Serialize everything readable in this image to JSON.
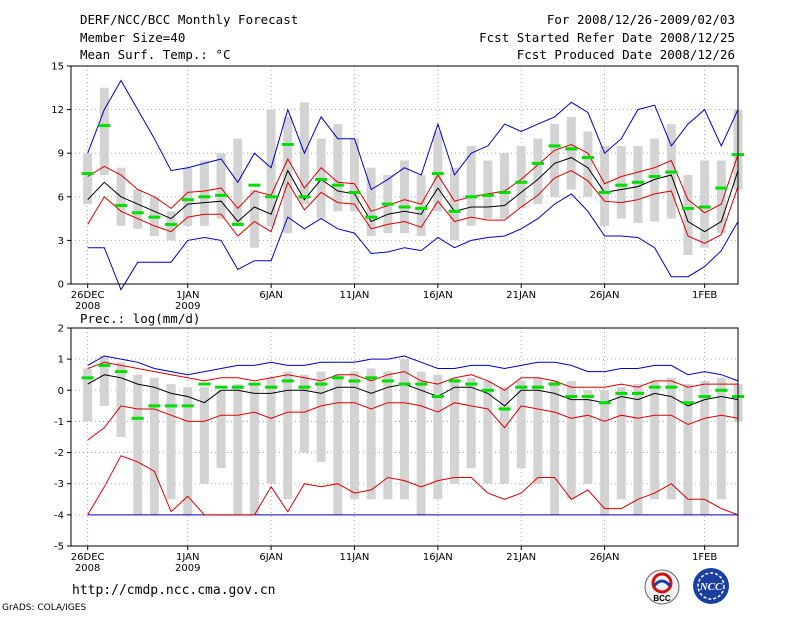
{
  "header": {
    "title": "DERF/NCC/BCC Monthly Forecast",
    "members": "Member Size=40",
    "variable": "Mean Surf. Temp.: °C",
    "period": "For 2008/12/26-2009/02/03",
    "refer": "Fcst Started Refer Date 2008/12/25",
    "produced": "Fcst Produced Date 2008/12/26"
  },
  "footer": {
    "url": "http://cmdp.ncc.cma.gov.cn",
    "credit": "GrADS: COLA/IGES",
    "logo_bcc": "BCC",
    "logo_ncc": "NCC"
  },
  "colors": {
    "bar": "#d3d3d3",
    "median": "#00dd00",
    "mean": "#000000",
    "sd": "#dd0000",
    "range": "#0000cc",
    "grid": "#999999"
  },
  "chart_data": [
    {
      "type": "box-ensemble",
      "title": "Mean Surf. Temp.: °C",
      "ylim": [
        0,
        15
      ],
      "yticks": [
        0,
        3,
        6,
        9,
        12,
        15
      ],
      "xlim": [
        0,
        40
      ],
      "xticks": [
        {
          "x": 1,
          "label": "26DEC",
          "sub": "2008"
        },
        {
          "x": 7,
          "label": "1JAN",
          "sub": "2009"
        },
        {
          "x": 12,
          "label": "6JAN",
          "sub": ""
        },
        {
          "x": 17,
          "label": "11JAN",
          "sub": ""
        },
        {
          "x": 22,
          "label": "16JAN",
          "sub": ""
        },
        {
          "x": 27,
          "label": "21JAN",
          "sub": ""
        },
        {
          "x": 32,
          "label": "26JAN",
          "sub": ""
        },
        {
          "x": 38,
          "label": "1FEB",
          "sub": ""
        }
      ],
      "x": [
        1,
        2,
        3,
        4,
        5,
        6,
        7,
        8,
        9,
        10,
        11,
        12,
        13,
        14,
        15,
        16,
        17,
        18,
        19,
        20,
        21,
        22,
        23,
        24,
        25,
        26,
        27,
        28,
        29,
        30,
        31,
        32,
        33,
        34,
        35,
        36,
        37,
        38,
        39,
        40
      ],
      "box_low": [
        5.5,
        7.5,
        4.0,
        3.8,
        3.3,
        3.0,
        4.0,
        4.0,
        4.5,
        4.0,
        2.5,
        4.0,
        3.5,
        5.5,
        4.5,
        5.0,
        5.0,
        3.3,
        3.5,
        3.5,
        3.3,
        5.0,
        3.0,
        4.0,
        4.5,
        4.5,
        5.2,
        5.5,
        6.0,
        6.5,
        6.0,
        4.0,
        4.5,
        4.2,
        4.3,
        4.5,
        2.0,
        2.5,
        3.5,
        6.5
      ],
      "box_high": [
        9.0,
        13.5,
        8.0,
        6.5,
        6.0,
        5.0,
        8.0,
        8.5,
        9.0,
        10.0,
        6.5,
        12.0,
        11.5,
        12.5,
        10.0,
        11.0,
        10.0,
        8.0,
        7.5,
        8.5,
        7.5,
        10.5,
        8.0,
        9.5,
        8.5,
        9.0,
        9.5,
        10.0,
        11.0,
        11.5,
        10.5,
        9.5,
        9.5,
        9.5,
        10.0,
        11.0,
        7.5,
        8.5,
        8.5,
        12.0
      ],
      "median": [
        7.6,
        10.9,
        5.4,
        4.9,
        4.6,
        4.1,
        5.8,
        6.0,
        6.1,
        4.1,
        6.8,
        6.0,
        9.6,
        6.0,
        7.2,
        6.8,
        6.3,
        4.6,
        5.5,
        5.3,
        5.2,
        7.6,
        5.0,
        6.0,
        6.1,
        6.3,
        7.0,
        8.3,
        9.5,
        9.3,
        8.7,
        6.3,
        6.8,
        7.0,
        7.4,
        7.7,
        5.2,
        5.3,
        6.6,
        8.9
      ],
      "mean": [
        5.8,
        7.0,
        6.0,
        5.5,
        5.0,
        4.5,
        5.5,
        5.6,
        5.7,
        4.3,
        5.3,
        4.8,
        7.8,
        5.8,
        7.2,
        6.4,
        6.2,
        4.3,
        4.8,
        5.0,
        4.8,
        6.6,
        5.0,
        5.3,
        5.3,
        5.4,
        6.3,
        7.2,
        8.3,
        8.7,
        8.0,
        6.3,
        6.5,
        6.7,
        7.2,
        7.5,
        4.3,
        3.6,
        4.3,
        7.8
      ],
      "sd_high": [
        7.4,
        8.1,
        7.5,
        6.5,
        6.0,
        5.2,
        6.3,
        6.4,
        6.6,
        5.2,
        6.4,
        6.1,
        8.6,
        6.6,
        8.0,
        7.0,
        6.9,
        5.0,
        5.4,
        5.8,
        5.5,
        7.5,
        5.7,
        6.0,
        6.2,
        6.4,
        7.2,
        8.2,
        9.2,
        9.6,
        9.0,
        6.9,
        7.4,
        7.7,
        8.0,
        8.5,
        5.8,
        4.9,
        5.5,
        8.9
      ],
      "sd_low": [
        4.1,
        6.0,
        5.0,
        4.5,
        4.0,
        3.6,
        4.6,
        4.8,
        4.8,
        3.3,
        4.3,
        3.6,
        7.0,
        5.1,
        6.3,
        5.6,
        5.5,
        3.8,
        4.1,
        4.3,
        3.9,
        5.7,
        4.3,
        4.6,
        4.4,
        4.4,
        5.3,
        6.1,
        7.3,
        7.8,
        7.1,
        5.7,
        5.6,
        5.8,
        6.2,
        6.4,
        3.3,
        2.8,
        3.4,
        6.7
      ],
      "max": [
        9.0,
        12.0,
        14.0,
        12.0,
        10.0,
        7.8,
        8.0,
        8.3,
        8.6,
        7.0,
        9.0,
        8.0,
        12.0,
        9.0,
        11.5,
        10.0,
        10.0,
        6.5,
        7.2,
        8.0,
        7.5,
        11.0,
        7.5,
        9.0,
        9.5,
        11.0,
        10.5,
        11.0,
        11.5,
        12.5,
        11.8,
        9.0,
        10.0,
        12.0,
        12.3,
        9.5,
        11.0,
        12.0,
        9.5,
        12.0
      ],
      "min": [
        2.5,
        2.5,
        -0.4,
        1.5,
        1.5,
        1.5,
        3.0,
        3.2,
        3.0,
        1.0,
        1.6,
        1.6,
        4.6,
        3.8,
        4.5,
        3.8,
        3.5,
        2.1,
        2.2,
        2.5,
        2.3,
        3.2,
        2.5,
        3.0,
        3.2,
        3.3,
        3.8,
        4.5,
        5.5,
        6.2,
        5.0,
        3.3,
        3.3,
        3.2,
        2.5,
        0.5,
        0.5,
        1.2,
        2.3,
        4.3
      ]
    },
    {
      "type": "box-ensemble",
      "title": "Prec.: log(mm/d)",
      "ylim": [
        -5,
        2
      ],
      "yticks": [
        -5,
        -4,
        -3,
        -2,
        -1,
        0,
        1,
        2
      ],
      "xlim": [
        0,
        40
      ],
      "xticks": [
        {
          "x": 1,
          "label": "26DEC",
          "sub": "2008"
        },
        {
          "x": 7,
          "label": "1JAN",
          "sub": "2009"
        },
        {
          "x": 12,
          "label": "6JAN",
          "sub": ""
        },
        {
          "x": 17,
          "label": "11JAN",
          "sub": ""
        },
        {
          "x": 22,
          "label": "16JAN",
          "sub": ""
        },
        {
          "x": 27,
          "label": "21JAN",
          "sub": ""
        },
        {
          "x": 32,
          "label": "26JAN",
          "sub": ""
        },
        {
          "x": 38,
          "label": "1FEB",
          "sub": ""
        }
      ],
      "x": [
        1,
        2,
        3,
        4,
        5,
        6,
        7,
        8,
        9,
        10,
        11,
        12,
        13,
        14,
        15,
        16,
        17,
        18,
        19,
        20,
        21,
        22,
        23,
        24,
        25,
        26,
        27,
        28,
        29,
        30,
        31,
        32,
        33,
        34,
        35,
        36,
        37,
        38,
        39,
        40
      ],
      "box_low": [
        -1.0,
        -0.5,
        -1.5,
        -4.0,
        -4.0,
        -3.5,
        -4.0,
        -3.0,
        -2.5,
        -4.0,
        -4.0,
        -3.0,
        -3.5,
        -2.0,
        -2.3,
        -4.0,
        -3.5,
        -3.5,
        -3.5,
        -3.5,
        -4.0,
        -3.5,
        -3.0,
        -2.5,
        -3.0,
        -3.0,
        -2.5,
        -3.0,
        -4.0,
        -3.5,
        -3.0,
        -4.0,
        -3.5,
        -4.0,
        -3.5,
        -3.5,
        -4.0,
        -4.0,
        -3.5,
        -1.0
      ],
      "box_high": [
        0.7,
        1.1,
        0.9,
        0.5,
        0.4,
        0.2,
        0.1,
        0.1,
        0.0,
        0.2,
        0.2,
        0.4,
        0.6,
        0.5,
        0.6,
        0.5,
        0.6,
        0.7,
        0.6,
        1.0,
        0.6,
        0.5,
        0.4,
        0.4,
        0.3,
        0.1,
        0.3,
        0.4,
        0.3,
        0.3,
        0.0,
        0.0,
        0.1,
        0.2,
        0.3,
        0.4,
        0.2,
        0.3,
        0.4,
        0.2
      ],
      "median": [
        0.4,
        0.8,
        0.6,
        -0.9,
        -0.5,
        -0.5,
        -0.5,
        0.2,
        0.1,
        0.1,
        0.2,
        0.1,
        0.3,
        0.1,
        0.2,
        0.4,
        0.3,
        0.4,
        0.3,
        0.2,
        0.2,
        -0.2,
        0.3,
        0.2,
        0.0,
        -0.6,
        0.1,
        0.1,
        0.2,
        -0.2,
        -0.2,
        -0.4,
        -0.1,
        -0.1,
        0.1,
        0.1,
        -0.4,
        -0.2,
        0.0,
        -0.2
      ],
      "mean": [
        0.2,
        0.5,
        0.4,
        0.2,
        0.1,
        -0.1,
        -0.2,
        -0.4,
        0.0,
        0.0,
        -0.1,
        -0.1,
        0.0,
        0.0,
        -0.1,
        0.1,
        0.1,
        -0.1,
        0.1,
        0.2,
        0.0,
        -0.2,
        0.1,
        0.1,
        -0.1,
        -0.5,
        0.0,
        0.0,
        -0.1,
        -0.3,
        -0.3,
        -0.4,
        -0.2,
        -0.3,
        -0.1,
        -0.2,
        -0.5,
        -0.3,
        -0.2,
        -0.3
      ],
      "sd_high": [
        0.7,
        0.9,
        0.8,
        0.7,
        0.6,
        0.5,
        0.4,
        0.3,
        0.4,
        0.4,
        0.3,
        0.4,
        0.5,
        0.4,
        0.3,
        0.5,
        0.5,
        0.3,
        0.5,
        0.6,
        0.3,
        0.2,
        0.4,
        0.5,
        0.3,
        0.0,
        0.4,
        0.4,
        0.3,
        0.1,
        0.1,
        0.1,
        0.2,
        0.1,
        0.3,
        0.3,
        0.1,
        0.2,
        0.2,
        0.2
      ],
      "sd_low": [
        -1.6,
        -1.2,
        -0.5,
        -0.6,
        -0.6,
        -0.8,
        -1.0,
        -1.0,
        -0.8,
        -0.8,
        -0.7,
        -0.9,
        -0.7,
        -0.7,
        -0.5,
        -0.4,
        -0.4,
        -0.6,
        -0.4,
        -0.4,
        -0.5,
        -0.7,
        -0.4,
        -0.5,
        -0.6,
        -1.2,
        -0.5,
        -0.6,
        -0.7,
        -0.9,
        -0.8,
        -1.0,
        -0.8,
        -0.9,
        -0.8,
        -0.8,
        -1.1,
        -0.9,
        -0.8,
        -0.9
      ],
      "max": [
        0.8,
        1.1,
        1.0,
        0.9,
        0.7,
        0.6,
        0.5,
        0.6,
        0.7,
        0.8,
        0.8,
        0.9,
        0.8,
        0.8,
        0.9,
        0.9,
        0.9,
        1.0,
        1.0,
        1.1,
        0.9,
        0.7,
        0.7,
        0.8,
        0.8,
        0.7,
        0.8,
        0.9,
        0.9,
        0.8,
        0.6,
        0.6,
        0.7,
        0.7,
        0.8,
        0.8,
        0.5,
        0.6,
        0.5,
        0.3
      ],
      "min": [
        -4.0,
        -4.0,
        -4.0,
        -4.0,
        -4.0,
        -4.0,
        -4.0,
        -4.0,
        -4.0,
        -4.0,
        -4.0,
        -4.0,
        -4.0,
        -4.0,
        -4.0,
        -4.0,
        -4.0,
        -4.0,
        -4.0,
        -4.0,
        -4.0,
        -4.0,
        -4.0,
        -4.0,
        -4.0,
        -4.0,
        -4.0,
        -4.0,
        -4.0,
        -4.0,
        -4.0,
        -4.0,
        -4.0,
        -4.0,
        -4.0,
        -4.0,
        -4.0,
        -4.0,
        -4.0,
        -4.0
      ],
      "p10": [
        -4.0,
        -3.1,
        -2.1,
        -2.3,
        -2.6,
        -3.9,
        -3.4,
        -4.0,
        -4.0,
        -4.0,
        -4.0,
        -3.1,
        -3.9,
        -3.0,
        -3.1,
        -3.0,
        -3.3,
        -3.2,
        -2.8,
        -2.9,
        -3.1,
        -2.9,
        -2.8,
        -2.8,
        -3.3,
        -3.5,
        -3.3,
        -2.8,
        -2.8,
        -3.5,
        -3.2,
        -3.8,
        -3.8,
        -3.5,
        -3.3,
        -3.0,
        -3.5,
        -3.5,
        -3.8,
        -4.0
      ]
    }
  ]
}
